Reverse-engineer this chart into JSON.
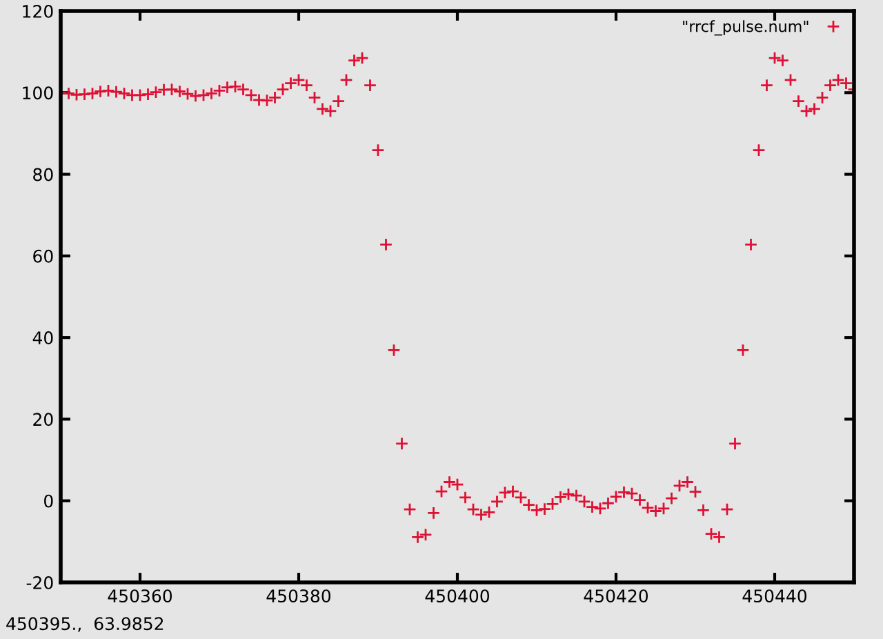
{
  "chart_data": {
    "type": "scatter",
    "x": [
      450350,
      450351,
      450352,
      450353,
      450354,
      450355,
      450356,
      450357,
      450358,
      450359,
      450360,
      450361,
      450362,
      450363,
      450364,
      450365,
      450366,
      450367,
      450368,
      450369,
      450370,
      450371,
      450372,
      450373,
      450374,
      450375,
      450376,
      450377,
      450378,
      450379,
      450380,
      450381,
      450382,
      450383,
      450384,
      450385,
      450386,
      450387,
      450388,
      450389,
      450390,
      450391,
      450392,
      450393,
      450394,
      450395,
      450396,
      450397,
      450398,
      450399,
      450400,
      450401,
      450402,
      450403,
      450404,
      450405,
      450406,
      450407,
      450408,
      450409,
      450410,
      450411,
      450412,
      450413,
      450414,
      450415,
      450416,
      450417,
      450418,
      450419,
      450420,
      450421,
      450422,
      450423,
      450424,
      450425,
      450426,
      450427,
      450428,
      450429,
      450430,
      450431,
      450432,
      450433,
      450434,
      450435,
      450436,
      450437,
      450438,
      450439,
      450440,
      450441,
      450442,
      450443,
      450444,
      450445,
      450446,
      450447,
      450448,
      450449,
      450450
    ],
    "series": [
      {
        "name": "\"rrcf_pulse.num\"",
        "color": "#dd1133",
        "values": [
          100,
          99.8,
          99.5,
          99.6,
          99.8,
          100.3,
          100.5,
          100.2,
          99.8,
          99.4,
          99.4,
          99.6,
          100.1,
          100.7,
          100.8,
          100.3,
          99.7,
          99.2,
          99.4,
          99.8,
          100.5,
          101.3,
          101.5,
          100.8,
          99.4,
          98.2,
          98.1,
          98.8,
          100.8,
          102.3,
          103.1,
          101.8,
          98.8,
          96.0,
          95.5,
          97.9,
          103.1,
          107.9,
          108.5,
          101.8,
          85.9,
          62.8,
          36.9,
          14.0,
          -2.1,
          -8.9,
          -8.3,
          -3.0,
          2.3,
          4.6,
          4.0,
          0.8,
          -2.1,
          -3.4,
          -2.8,
          -0.2,
          2.0,
          2.3,
          0.8,
          -1.0,
          -2.3,
          -2.0,
          -0.8,
          0.9,
          1.6,
          1.3,
          -0.2,
          -1.5,
          -1.9,
          -0.6,
          1.0,
          2.1,
          1.8,
          0.2,
          -1.7,
          -2.5,
          -1.9,
          0.6,
          3.7,
          4.6,
          2.2,
          -2.3,
          -8.1,
          -8.9,
          -2.1,
          14.0,
          36.9,
          62.8,
          85.9,
          101.8,
          108.5,
          107.9,
          103.1,
          97.9,
          95.5,
          96.0,
          98.8,
          101.8,
          103.1,
          102.3,
          100.8
        ]
      }
    ],
    "xlim": [
      450350,
      450450
    ],
    "ylim": [
      -20,
      120
    ],
    "xticks": [
      450360,
      450380,
      450400,
      450420,
      450440
    ],
    "yticks": [
      -20,
      0,
      20,
      40,
      60,
      80,
      100,
      120
    ],
    "marker": "cross",
    "legend": "top right",
    "grid": false,
    "annotations": [
      "450395.,  63.9852"
    ]
  }
}
